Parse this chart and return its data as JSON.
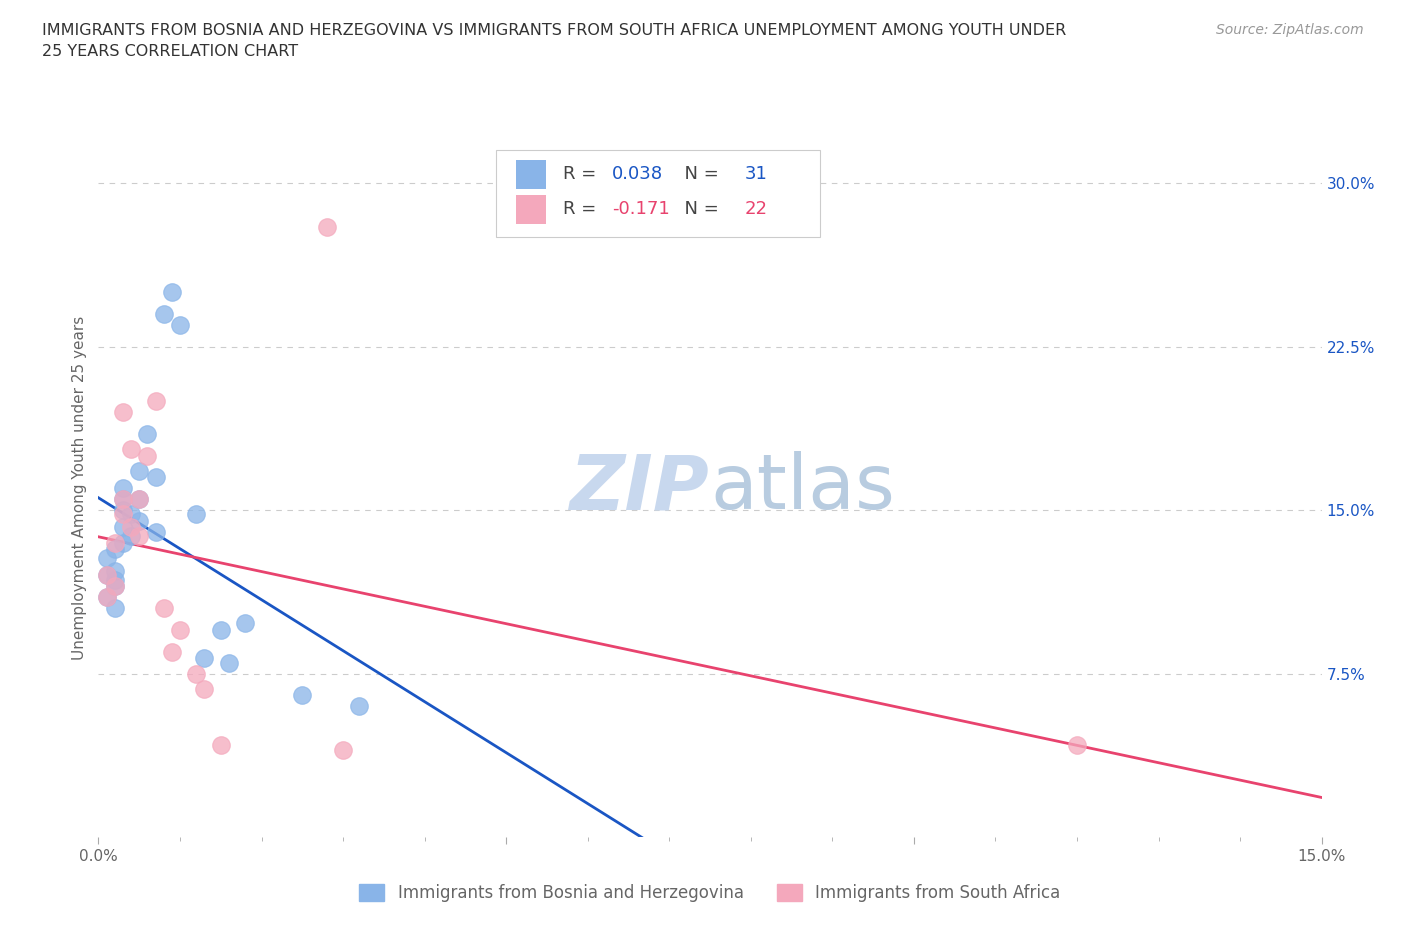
{
  "title_line1": "IMMIGRANTS FROM BOSNIA AND HERZEGOVINA VS IMMIGRANTS FROM SOUTH AFRICA UNEMPLOYMENT AMONG YOUTH UNDER",
  "title_line2": "25 YEARS CORRELATION CHART",
  "source": "Source: ZipAtlas.com",
  "ylabel": "Unemployment Among Youth under 25 years",
  "bosnia_color": "#89b4e8",
  "sa_color": "#f4a8bc",
  "bosnia_line_color": "#1a56c4",
  "sa_line_color": "#e8436e",
  "r_bosnia": 0.038,
  "n_bosnia": 31,
  "r_sa": -0.171,
  "n_sa": 22,
  "bosnia_x": [
    0.001,
    0.001,
    0.001,
    0.002,
    0.002,
    0.002,
    0.002,
    0.002,
    0.003,
    0.003,
    0.003,
    0.003,
    0.003,
    0.004,
    0.004,
    0.005,
    0.005,
    0.005,
    0.006,
    0.007,
    0.007,
    0.008,
    0.009,
    0.01,
    0.012,
    0.013,
    0.015,
    0.016,
    0.018,
    0.025,
    0.032
  ],
  "bosnia_y": [
    0.11,
    0.12,
    0.128,
    0.105,
    0.115,
    0.118,
    0.122,
    0.132,
    0.135,
    0.142,
    0.15,
    0.155,
    0.16,
    0.138,
    0.148,
    0.145,
    0.155,
    0.168,
    0.185,
    0.14,
    0.165,
    0.24,
    0.25,
    0.235,
    0.148,
    0.082,
    0.095,
    0.08,
    0.098,
    0.065,
    0.06
  ],
  "sa_x": [
    0.001,
    0.001,
    0.002,
    0.002,
    0.003,
    0.003,
    0.003,
    0.004,
    0.004,
    0.005,
    0.005,
    0.006,
    0.007,
    0.008,
    0.009,
    0.01,
    0.012,
    0.013,
    0.015,
    0.028,
    0.03,
    0.12
  ],
  "sa_y": [
    0.11,
    0.12,
    0.115,
    0.135,
    0.148,
    0.155,
    0.195,
    0.142,
    0.178,
    0.138,
    0.155,
    0.175,
    0.2,
    0.105,
    0.085,
    0.095,
    0.075,
    0.068,
    0.042,
    0.28,
    0.04,
    0.042
  ],
  "legend_bosnia": "Immigrants from Bosnia and Herzegovina",
  "legend_sa": "Immigrants from South Africa",
  "xlim": [
    0.0,
    0.15
  ],
  "ylim": [
    0.0,
    0.32
  ],
  "background_color": "#ffffff",
  "watermark_color": "#c8d8ee",
  "grid_color": "#cccccc",
  "tick_label_color": "#666666",
  "right_tick_color": "#1a56c4"
}
